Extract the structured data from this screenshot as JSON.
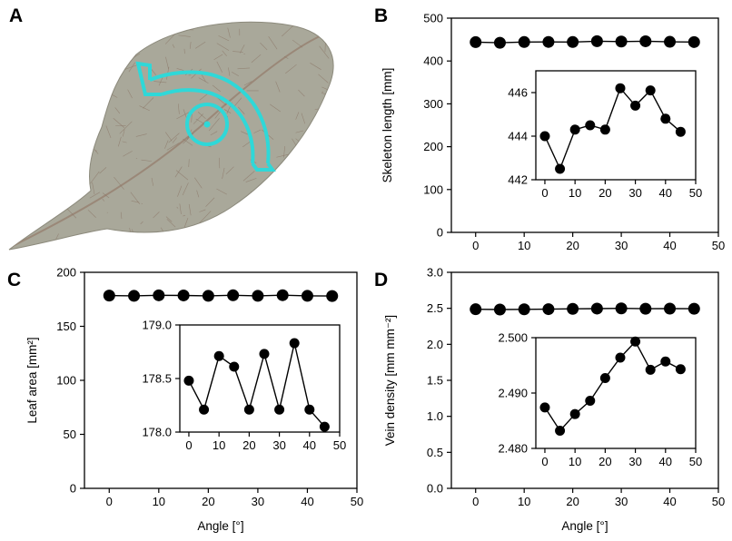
{
  "panels": {
    "A": "A",
    "B": "B",
    "C": "C",
    "D": "D"
  },
  "colors": {
    "leaf": "#a9a89a",
    "leaf_vein": "#8a7566",
    "rotation_arrow": "#2fd8d8",
    "markers": "#000000"
  },
  "icons": {
    "panel_a": "leaf-photo",
    "rotation": "rotation-arrow-icon"
  },
  "chart_data": [
    {
      "panel": "B",
      "type": "line",
      "xlabel": "",
      "ylabel": "Skeleton length [mm]",
      "xlim": [
        -5,
        50
      ],
      "ylim": [
        0,
        500
      ],
      "xticks": [
        "0",
        "10",
        "20",
        "30",
        "40",
        "50"
      ],
      "yticks": [
        "0",
        "100",
        "200",
        "300",
        "400",
        "500"
      ],
      "series": [
        {
          "x": [
            0,
            5,
            10,
            15,
            20,
            25,
            30,
            35,
            40,
            45
          ],
          "y": [
            444,
            442.5,
            444.3,
            444.5,
            444.3,
            446.2,
            445.4,
            446.1,
            444.8,
            444.2
          ]
        }
      ],
      "inset": {
        "xlim": [
          -3,
          50
        ],
        "ylim": [
          442,
          447
        ],
        "xticks": [
          "0",
          "10",
          "20",
          "30",
          "40",
          "50"
        ],
        "yticks": [
          "442",
          "444",
          "446"
        ],
        "series": [
          {
            "x": [
              0,
              5,
              10,
              15,
              20,
              25,
              30,
              35,
              40,
              45
            ],
            "y": [
              444,
              442.5,
              444.3,
              444.5,
              444.3,
              446.2,
              445.4,
              446.1,
              444.8,
              444.2
            ]
          }
        ]
      }
    },
    {
      "panel": "C",
      "type": "line",
      "xlabel": "Angle [°]",
      "ylabel": "Leaf area [mm²]",
      "xlim": [
        -5,
        50
      ],
      "ylim": [
        0,
        200
      ],
      "xticks": [
        "0",
        "10",
        "20",
        "30",
        "40",
        "50"
      ],
      "yticks": [
        "0",
        "50",
        "100",
        "150",
        "200"
      ],
      "series": [
        {
          "x": [
            0,
            5,
            10,
            15,
            20,
            25,
            30,
            35,
            40,
            45
          ],
          "y": [
            178.48,
            178.21,
            178.71,
            178.61,
            178.21,
            178.73,
            178.21,
            178.83,
            178.21,
            178.05
          ]
        }
      ],
      "inset": {
        "xlim": [
          -3,
          50
        ],
        "ylim": [
          178.0,
          179.0
        ],
        "xticks": [
          "0",
          "10",
          "20",
          "30",
          "40",
          "50"
        ],
        "yticks": [
          "178.0",
          "178.5",
          "179.0"
        ],
        "series": [
          {
            "x": [
              0,
              5,
              10,
              15,
              20,
              25,
              30,
              35,
              40,
              45
            ],
            "y": [
              178.48,
              178.21,
              178.71,
              178.61,
              178.21,
              178.73,
              178.21,
              178.83,
              178.21,
              178.05
            ]
          }
        ]
      }
    },
    {
      "panel": "D",
      "type": "line",
      "xlabel": "Angle [°]",
      "ylabel": "Vein density [mm mm⁻²]",
      "xlim": [
        -5,
        50
      ],
      "ylim": [
        0.0,
        3.0
      ],
      "xticks": [
        "0",
        "10",
        "20",
        "30",
        "40",
        "50"
      ],
      "yticks": [
        "0.0",
        "0.5",
        "1.0",
        "1.5",
        "2.0",
        "2.5",
        "3.0"
      ],
      "series": [
        {
          "x": [
            0,
            5,
            10,
            15,
            20,
            25,
            30,
            35,
            40,
            45
          ],
          "y": [
            2.4874,
            2.4832,
            2.4862,
            2.4886,
            2.4927,
            2.4964,
            2.4993,
            2.4942,
            2.4957,
            2.4943
          ]
        }
      ],
      "inset": {
        "xlim": [
          -3,
          50
        ],
        "ylim": [
          2.48,
          2.5
        ],
        "xticks": [
          "0",
          "10",
          "20",
          "30",
          "40",
          "50"
        ],
        "yticks": [
          "2.480",
          "2.490",
          "2.500"
        ],
        "series": [
          {
            "x": [
              0,
              5,
              10,
              15,
              20,
              25,
              30,
              35,
              40,
              45
            ],
            "y": [
              2.4874,
              2.4832,
              2.4862,
              2.4886,
              2.4927,
              2.4964,
              2.4993,
              2.4942,
              2.4957,
              2.4943
            ]
          }
        ]
      }
    }
  ]
}
